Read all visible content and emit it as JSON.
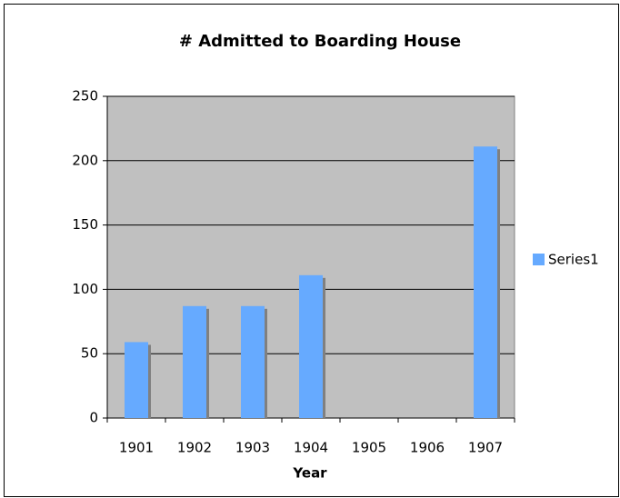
{
  "chart_data": {
    "type": "bar",
    "title": "# Admitted to Boarding House",
    "x_label": "Year",
    "categories": [
      "1901",
      "1902",
      "1903",
      "1904",
      "1905",
      "1906",
      "1907"
    ],
    "series": [
      {
        "name": "Series1",
        "color": "#66aaff",
        "values": [
          59,
          87,
          87,
          111,
          null,
          null,
          211
        ]
      }
    ],
    "ylim": [
      0,
      250
    ],
    "yticks": [
      0,
      50,
      100,
      150,
      200,
      250
    ],
    "grid": true,
    "legend": "right"
  }
}
